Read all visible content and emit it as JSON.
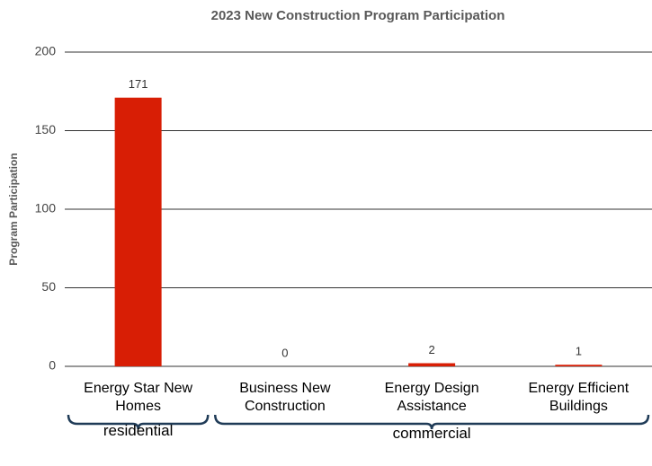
{
  "chart_data": {
    "type": "bar",
    "title": "2023 New Construction Program Participation",
    "y_label": "Program Participation",
    "categories": [
      "Energy Star New Homes",
      "Business New Construction",
      "Energy Design Assistance",
      "Energy Efficient Buildings"
    ],
    "values": [
      171,
      0,
      2,
      1
    ],
    "color": "#d81e05",
    "ylim": [
      0,
      200
    ],
    "yticks": [
      0,
      50,
      100,
      150,
      200
    ],
    "grid": true,
    "groups": [
      {
        "name": "residential",
        "span": 1
      },
      {
        "name": "commercial",
        "span": 3
      }
    ]
  }
}
